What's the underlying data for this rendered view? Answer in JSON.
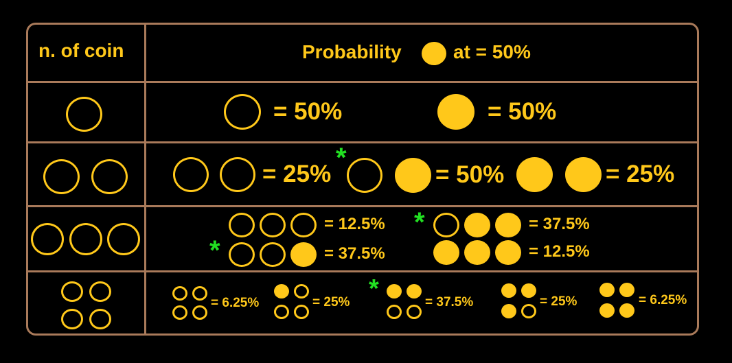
{
  "header": {
    "col1": "n. of coin",
    "col2_prefix": "Probability",
    "col2_suffix": "at = 50%"
  },
  "row1": {
    "label_a": "= 50%",
    "label_b": "= 50%"
  },
  "row2": {
    "label_a": "= 25%",
    "label_b": "= 50%",
    "label_c": "= 25%"
  },
  "row3": {
    "label_a": "= 12.5%",
    "label_b": "= 37.5%",
    "label_c": "= 37.5%",
    "label_d": "= 12.5%"
  },
  "row4": {
    "label_a": "= 6.25%",
    "label_b": "= 25%",
    "label_c": "= 37.5%",
    "label_d": "= 25%",
    "label_e": "= 6.25%"
  },
  "star_symbol": "*",
  "colors": {
    "coin": "#ffc81a",
    "border": "#a97a5a",
    "star": "#22e022",
    "background": "#000000"
  }
}
